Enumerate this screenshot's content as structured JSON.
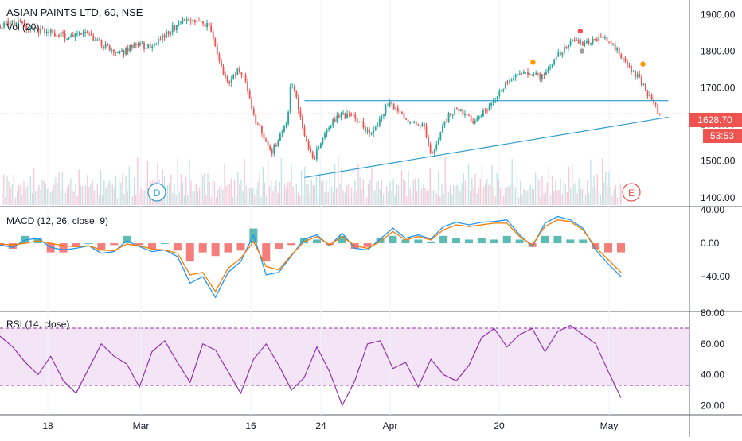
{
  "header": {
    "title": "ASIAN PAINTS LTD, 60, NSE",
    "volume_label": "Vol (20)"
  },
  "price_panel": {
    "last_price": "1628.70",
    "countdown": "53:53",
    "colors": {
      "up": "#26a69a",
      "down": "#ef5350",
      "price_line": "#ef5350",
      "trendline": "#2e9ad0"
    },
    "markers": [
      {
        "label": "D",
        "color": "#2e9ad0"
      },
      {
        "label": "E",
        "color": "#ef5350"
      }
    ]
  },
  "macd_panel": {
    "title": "MACD (12, 26, close, 9)",
    "colors": {
      "macd": "#2196f3",
      "signal": "#f57c00"
    }
  },
  "rsi_panel": {
    "title": "RSI (14, close)",
    "colors": {
      "line": "#8e24aa",
      "band": "#f3e5f5"
    }
  },
  "time_axis": {
    "labels": [
      "18",
      "Mar",
      "16",
      "24",
      "Apr",
      "20",
      "May"
    ]
  },
  "chart_data": [
    {
      "type": "candlestick",
      "title": "ASIAN PAINTS LTD, 60, NSE",
      "y_ticks": [
        "1900.00",
        "1800.00",
        "1700.00",
        "1600.00",
        "1500.00",
        "1400.00"
      ],
      "ylim": [
        1380,
        1940
      ],
      "last_price": 1628.7,
      "path_points": [
        [
          0,
          1870
        ],
        [
          10,
          1880
        ],
        [
          20,
          1858
        ],
        [
          30,
          1850
        ],
        [
          40,
          1840
        ],
        [
          50,
          1855
        ],
        [
          60,
          1820
        ],
        [
          70,
          1790
        ],
        [
          80,
          1820
        ],
        [
          90,
          1808
        ],
        [
          100,
          1856
        ],
        [
          110,
          1890
        ],
        [
          120,
          1880
        ],
        [
          125,
          1855
        ],
        [
          130,
          1770
        ],
        [
          135,
          1700
        ],
        [
          140,
          1750
        ],
        [
          145,
          1720
        ],
        [
          150,
          1620
        ],
        [
          155,
          1580
        ],
        [
          160,
          1520
        ],
        [
          165,
          1560
        ],
        [
          170,
          1620
        ],
        [
          172,
          1720
        ],
        [
          175,
          1680
        ],
        [
          180,
          1560
        ],
        [
          185,
          1500
        ],
        [
          190,
          1560
        ],
        [
          195,
          1600
        ],
        [
          200,
          1625
        ],
        [
          210,
          1620
        ],
        [
          220,
          1570
        ],
        [
          230,
          1665
        ],
        [
          240,
          1610
        ],
        [
          250,
          1600
        ],
        [
          255,
          1520
        ],
        [
          265,
          1625
        ],
        [
          270,
          1645
        ],
        [
          280,
          1610
        ],
        [
          290,
          1650
        ],
        [
          300,
          1720
        ],
        [
          310,
          1740
        ],
        [
          320,
          1730
        ],
        [
          330,
          1790
        ],
        [
          340,
          1830
        ],
        [
          345,
          1820
        ],
        [
          350,
          1830
        ],
        [
          355,
          1840
        ],
        [
          360,
          1830
        ],
        [
          365,
          1800
        ],
        [
          370,
          1760
        ],
        [
          375,
          1740
        ],
        [
          380,
          1710
        ],
        [
          385,
          1665
        ],
        [
          390,
          1628
        ]
      ],
      "volume": [
        36,
        62,
        28,
        44,
        31,
        22,
        47,
        58,
        25,
        39,
        33,
        41,
        29,
        52,
        35,
        27,
        45,
        38,
        24,
        49,
        31,
        57,
        26,
        43,
        34,
        61,
        28,
        40,
        37,
        23,
        46,
        32,
        55,
        30,
        42,
        27,
        48,
        36,
        25,
        59
      ],
      "trendlines": [
        {
          "from": [
            180,
            1665
          ],
          "to": [
            395,
            1665
          ]
        },
        {
          "from": [
            180,
            1455
          ],
          "to": [
            395,
            1620
          ]
        }
      ],
      "pivot_dots": [
        {
          "x": 315,
          "y": 1770,
          "color": "#ff9800"
        },
        {
          "x": 343,
          "y": 1855,
          "color": "#ef5350"
        },
        {
          "x": 344,
          "y": 1800,
          "color": "#9e9e9e"
        },
        {
          "x": 380,
          "y": 1765,
          "color": "#ff9800"
        }
      ]
    },
    {
      "type": "macd",
      "title": "MACD (12, 26, close, 9)",
      "y_ticks": [
        "40.00",
        "0.00",
        "−40.00"
      ],
      "ylim": [
        -80,
        42
      ],
      "macd": [
        -2,
        -5,
        4,
        6,
        -5,
        -8,
        -6,
        -3,
        -12,
        -10,
        3,
        -4,
        -10,
        -8,
        -16,
        -48,
        -40,
        -65,
        -35,
        -22,
        10,
        -38,
        -35,
        -15,
        5,
        10,
        -3,
        12,
        -6,
        -8,
        5,
        18,
        6,
        10,
        5,
        20,
        25,
        22,
        25,
        26,
        28,
        10,
        -4,
        24,
        32,
        28,
        18,
        -8,
        -25,
        -40
      ],
      "signal": [
        -1,
        -2,
        0,
        3,
        0,
        -3,
        -4,
        -3,
        -8,
        -9,
        -1,
        -3,
        -7,
        -8,
        -12,
        -38,
        -35,
        -58,
        -30,
        -18,
        2,
        -28,
        -32,
        -14,
        2,
        8,
        -2,
        8,
        -3,
        -6,
        2,
        14,
        4,
        8,
        4,
        16,
        22,
        20,
        22,
        24,
        24,
        8,
        -2,
        20,
        28,
        26,
        16,
        -5,
        -20,
        -35
      ]
    },
    {
      "type": "rsi",
      "title": "RSI (14, close)",
      "y_ticks": [
        "80.00",
        "60.00",
        "40.00",
        "20.00"
      ],
      "ylim": [
        15,
        80
      ],
      "bands": [
        30,
        70
      ],
      "values": [
        65,
        58,
        48,
        40,
        52,
        36,
        28,
        44,
        60,
        52,
        47,
        32,
        55,
        62,
        48,
        35,
        60,
        56,
        42,
        28,
        50,
        60,
        46,
        30,
        38,
        58,
        42,
        20,
        36,
        60,
        62,
        44,
        48,
        32,
        50,
        40,
        36,
        46,
        64,
        70,
        58,
        66,
        70,
        55,
        68,
        72,
        66,
        60,
        42,
        25
      ]
    }
  ]
}
